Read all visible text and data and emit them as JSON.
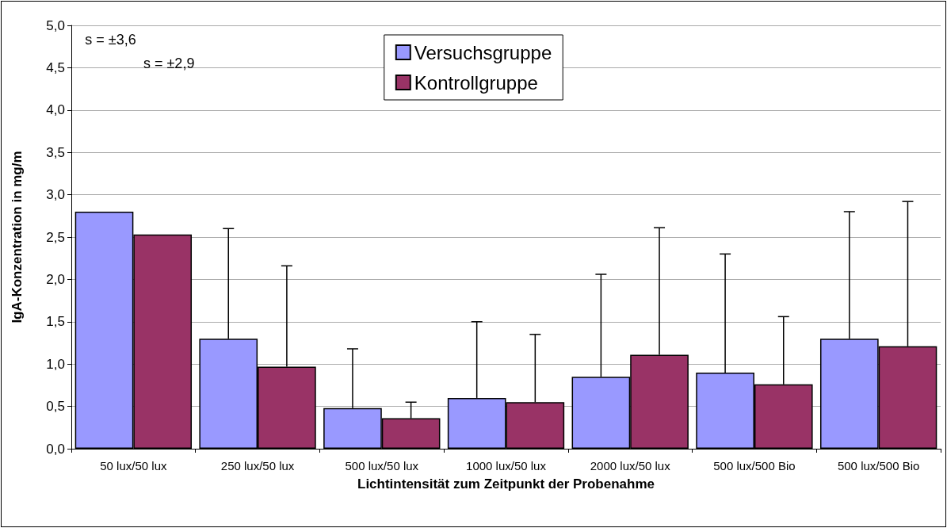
{
  "chart_data": {
    "type": "bar",
    "xlabel": "Lichtintensität zum Zeitpunkt der Probenahme",
    "ylabel": "IgA-Konzentration in mg/m",
    "categories": [
      "50 lux/50 lux",
      "250 lux/50 lux",
      "500 lux/50 lux",
      "1000 lux/50 lux",
      "2000 lux/50 lux",
      "500 lux/500 Bio",
      "500 lux/500 Bio"
    ],
    "series": [
      {
        "name": "Versuchsgruppe",
        "color": "#9999ff",
        "values": [
          2.8,
          1.3,
          0.48,
          0.6,
          0.85,
          0.9,
          1.3
        ],
        "errors": [
          null,
          [
            1.3,
            2.6
          ],
          [
            0.48,
            1.18
          ],
          [
            0.6,
            1.5
          ],
          [
            0.85,
            2.06
          ],
          [
            0.9,
            2.3
          ],
          [
            1.3,
            2.8
          ]
        ]
      },
      {
        "name": "Kontrollgruppe",
        "color": "#993366",
        "values": [
          2.53,
          0.97,
          0.36,
          0.55,
          1.11,
          0.76,
          1.21
        ],
        "errors": [
          null,
          [
            0.97,
            2.16
          ],
          [
            0.36,
            0.55
          ],
          [
            0.55,
            1.35
          ],
          [
            1.11,
            2.61
          ],
          [
            0.76,
            1.56
          ],
          [
            1.21,
            2.92
          ]
        ]
      }
    ],
    "ylim": [
      0,
      5
    ],
    "yticks": [
      {
        "value": 0,
        "label": "0,0"
      },
      {
        "value": 0.5,
        "label": "0,5"
      },
      {
        "value": 1,
        "label": "1,0"
      },
      {
        "value": 1.5,
        "label": "1,5"
      },
      {
        "value": 2,
        "label": "2,0"
      },
      {
        "value": 2.5,
        "label": "2,5"
      },
      {
        "value": 3,
        "label": "3,0"
      },
      {
        "value": 3.5,
        "label": "3,5"
      },
      {
        "value": 4,
        "label": "4,0"
      },
      {
        "value": 4.5,
        "label": "4,5"
      },
      {
        "value": 5,
        "label": "5,0"
      }
    ],
    "annotations": [
      "s = ±3,6",
      "s = ±2,9"
    ],
    "grid": "y",
    "legend": "top"
  }
}
